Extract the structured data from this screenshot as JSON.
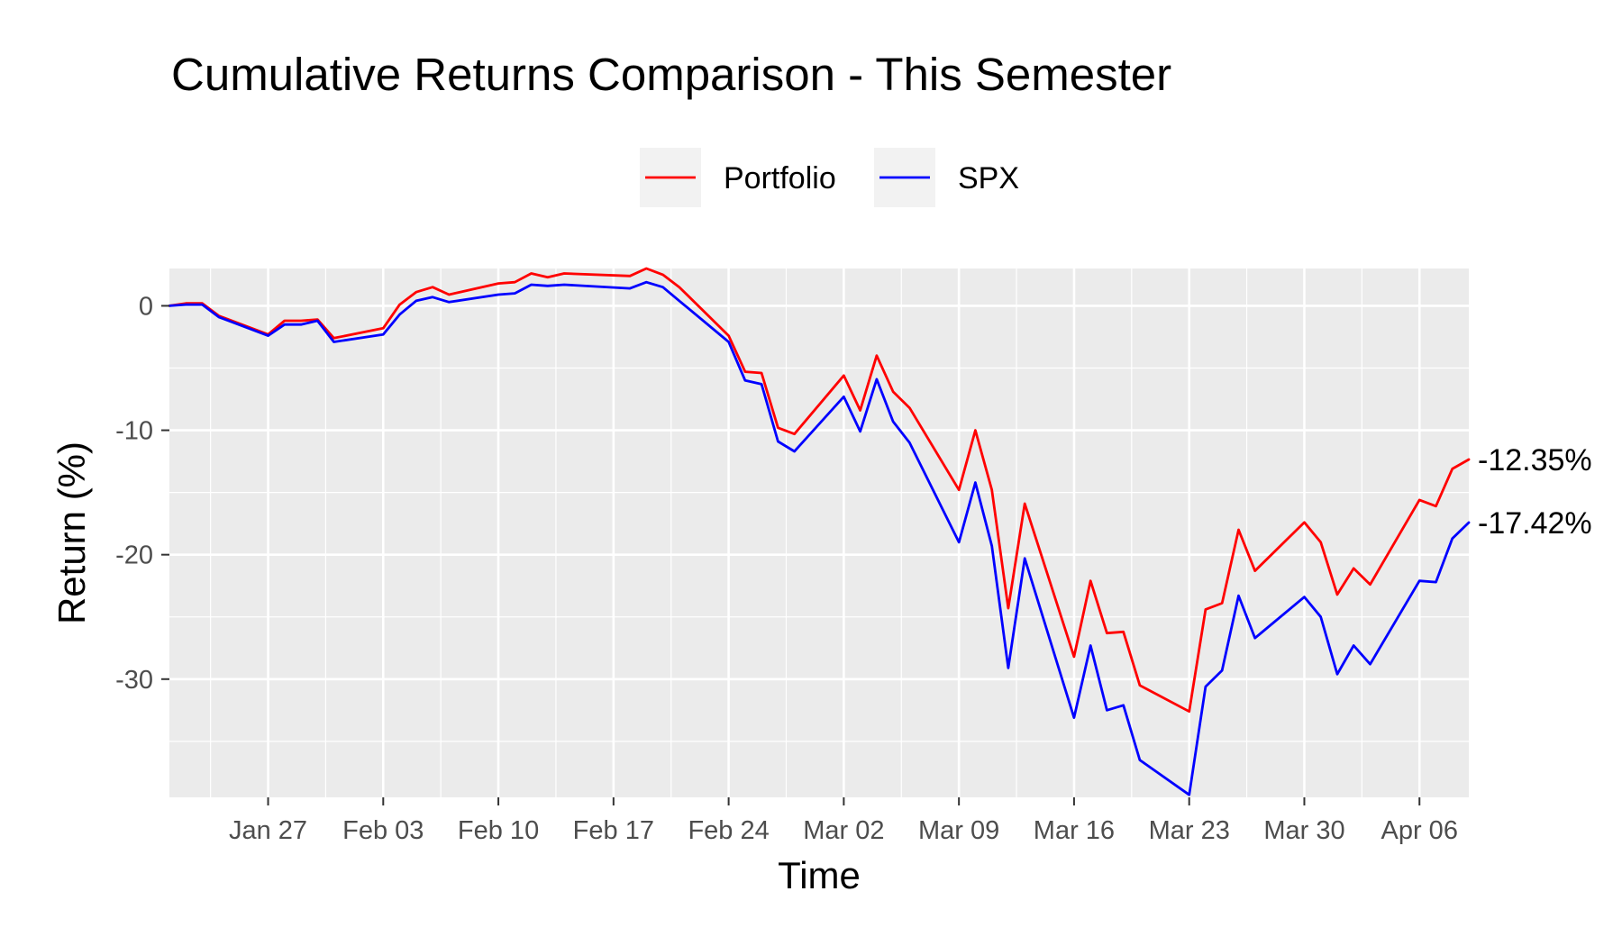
{
  "chart_data": {
    "type": "line",
    "title": "Cumulative Returns Comparison - This Semester",
    "xlabel": "Time",
    "ylabel": "Return (%)",
    "x_ticks": [
      {
        "date": "2020-01-27",
        "label": "Jan 27"
      },
      {
        "date": "2020-02-03",
        "label": "Feb 03"
      },
      {
        "date": "2020-02-10",
        "label": "Feb 10"
      },
      {
        "date": "2020-02-17",
        "label": "Feb 17"
      },
      {
        "date": "2020-02-24",
        "label": "Feb 24"
      },
      {
        "date": "2020-03-02",
        "label": "Mar 02"
      },
      {
        "date": "2020-03-09",
        "label": "Mar 09"
      },
      {
        "date": "2020-03-16",
        "label": "Mar 16"
      },
      {
        "date": "2020-03-23",
        "label": "Mar 23"
      },
      {
        "date": "2020-03-30",
        "label": "Mar 30"
      },
      {
        "date": "2020-04-06",
        "label": "Apr 06"
      }
    ],
    "y_ticks": [
      0,
      -10,
      -20,
      -30
    ],
    "y_tick_labels": [
      "0",
      "-10",
      "-20",
      "-30"
    ],
    "xlim": [
      "2020-01-21",
      "2020-04-09"
    ],
    "ylim": [
      -39.5,
      3.0
    ],
    "grid": true,
    "legend_position": "top",
    "x": [
      "2020-01-21",
      "2020-01-22",
      "2020-01-23",
      "2020-01-24",
      "2020-01-27",
      "2020-01-28",
      "2020-01-29",
      "2020-01-30",
      "2020-01-31",
      "2020-02-03",
      "2020-02-04",
      "2020-02-05",
      "2020-02-06",
      "2020-02-07",
      "2020-02-10",
      "2020-02-11",
      "2020-02-12",
      "2020-02-13",
      "2020-02-14",
      "2020-02-18",
      "2020-02-19",
      "2020-02-20",
      "2020-02-21",
      "2020-02-24",
      "2020-02-25",
      "2020-02-26",
      "2020-02-27",
      "2020-02-28",
      "2020-03-02",
      "2020-03-03",
      "2020-03-04",
      "2020-03-05",
      "2020-03-06",
      "2020-03-09",
      "2020-03-10",
      "2020-03-11",
      "2020-03-12",
      "2020-03-13",
      "2020-03-16",
      "2020-03-17",
      "2020-03-18",
      "2020-03-19",
      "2020-03-20",
      "2020-03-23",
      "2020-03-24",
      "2020-03-25",
      "2020-03-26",
      "2020-03-27",
      "2020-03-30",
      "2020-03-31",
      "2020-04-01",
      "2020-04-02",
      "2020-04-03",
      "2020-04-06",
      "2020-04-07",
      "2020-04-08",
      "2020-04-09"
    ],
    "series": [
      {
        "name": "Portfolio",
        "color": "#ff0000",
        "values": [
          0,
          0.2,
          0.2,
          -0.8,
          -2.3,
          -1.2,
          -1.2,
          -1.1,
          -2.6,
          -1.8,
          0.1,
          1.1,
          1.5,
          0.9,
          1.8,
          1.9,
          2.6,
          2.3,
          2.6,
          2.4,
          3.0,
          2.5,
          1.5,
          -2.4,
          -5.3,
          -5.4,
          -9.8,
          -10.3,
          -5.6,
          -8.4,
          -4.0,
          -6.9,
          -8.2,
          -14.8,
          -10.0,
          -14.8,
          -24.3,
          -15.9,
          -28.2,
          -22.1,
          -26.3,
          -26.2,
          -30.5,
          -32.6,
          -24.4,
          -23.9,
          -18.0,
          -21.3,
          -17.4,
          -19.0,
          -23.2,
          -21.1,
          -22.4,
          -15.6,
          -16.1,
          -13.1,
          -12.35
        ]
      },
      {
        "name": "SPX",
        "color": "#0000ff",
        "values": [
          0,
          0.1,
          0.1,
          -0.9,
          -2.4,
          -1.5,
          -1.5,
          -1.2,
          -2.9,
          -2.3,
          -0.7,
          0.4,
          0.7,
          0.3,
          0.9,
          1.0,
          1.7,
          1.6,
          1.7,
          1.4,
          1.9,
          1.5,
          0.4,
          -2.9,
          -6.0,
          -6.3,
          -10.9,
          -11.7,
          -7.3,
          -10.1,
          -5.9,
          -9.3,
          -11.0,
          -19.0,
          -14.2,
          -19.3,
          -29.1,
          -20.3,
          -33.1,
          -27.3,
          -32.5,
          -32.1,
          -36.5,
          -39.3,
          -30.6,
          -29.3,
          -23.3,
          -26.7,
          -23.4,
          -25.0,
          -29.6,
          -27.3,
          -28.8,
          -22.1,
          -22.2,
          -18.7,
          -17.42
        ]
      }
    ],
    "end_labels": [
      {
        "series": "Portfolio",
        "text": "-12.35%"
      },
      {
        "series": "SPX",
        "text": "-17.42%"
      }
    ]
  }
}
